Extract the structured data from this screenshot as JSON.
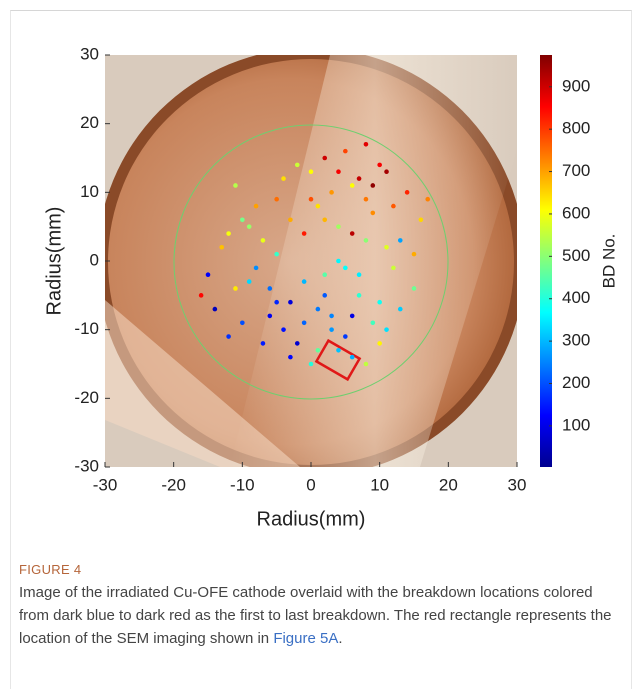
{
  "chart_data": {
    "type": "scatter",
    "x_label": "Radius(mm)",
    "y_label": "Radius(mm)",
    "colorbar_label": "BD No.",
    "xlim": [
      -30,
      30
    ],
    "ylim": [
      -30,
      30
    ],
    "xticks": [
      -30,
      -20,
      -10,
      0,
      10,
      20,
      30
    ],
    "yticks": [
      -30,
      -20,
      -10,
      0,
      10,
      20,
      30
    ],
    "clim": [
      3,
      975
    ],
    "cticks": [
      100,
      200,
      300,
      400,
      500,
      600,
      700,
      800,
      900
    ],
    "colormap": "jet",
    "x": [
      -16,
      -15,
      -12,
      -10,
      -8,
      -7,
      -5,
      -4,
      -3,
      -2,
      -1,
      0,
      1,
      2,
      3,
      4,
      5,
      6,
      7,
      8,
      9,
      10,
      11,
      12,
      13,
      14,
      15,
      16,
      17,
      -14,
      -11,
      -9,
      -6,
      -3,
      0,
      2,
      4,
      6,
      8,
      10,
      12,
      -13,
      -10,
      -7,
      -4,
      -1,
      1,
      3,
      5,
      7,
      9,
      11,
      13,
      15,
      -12,
      -8,
      -5,
      -2,
      0,
      2,
      4,
      6,
      8,
      10,
      -6,
      -3,
      1,
      3,
      5,
      7,
      9,
      11,
      -9,
      -5,
      -1,
      2,
      4,
      6,
      8,
      -11
    ],
    "values": [
      -5,
      -2,
      4,
      -9,
      8,
      -12,
      1,
      12,
      -6,
      14,
      -3,
      9,
      -13,
      15,
      -8,
      5,
      -11,
      11,
      -2,
      17,
      7,
      -6,
      13,
      -1,
      3,
      10,
      -4,
      6,
      9,
      -7,
      11,
      -3,
      -8,
      6,
      -15,
      -5,
      13,
      -14,
      3,
      -12,
      8,
      2,
      6,
      3,
      -10,
      4,
      -7,
      10,
      -1,
      12,
      -9,
      2,
      -7,
      1,
      -11,
      -1,
      9,
      -12,
      13,
      -2,
      -13,
      4,
      -15,
      14,
      -4,
      -14,
      8,
      -10,
      16,
      -5,
      11,
      -10,
      5,
      -6,
      -9,
      6,
      0,
      -8,
      9,
      -4
    ],
    "color_values": [
      850,
      120,
      600,
      200,
      700,
      150,
      420,
      640,
      90,
      560,
      300,
      780,
      460,
      900,
      250,
      520,
      180,
      610,
      350,
      880,
      720,
      380,
      940,
      560,
      280,
      820,
      470,
      650,
      730,
      60,
      540,
      330,
      110,
      690,
      400,
      210,
      860,
      290,
      500,
      620,
      770,
      670,
      480,
      590,
      140,
      830,
      240,
      710,
      370,
      910,
      430,
      580,
      320,
      690,
      170,
      260,
      750,
      80,
      610,
      450,
      310,
      920,
      550,
      860,
      230,
      130,
      640,
      270,
      790,
      410,
      960,
      340,
      510,
      160,
      220,
      680,
      360,
      100,
      740,
      630
    ]
  },
  "caption": {
    "label": "FIGURE 4",
    "text": "Image of the irradiated Cu-OFE cathode overlaid with the breakdown locations colored from dark blue to dark red as the first to last breakdown. The red rectangle represents the location of the SEM imaging shown in",
    "link": "Figure 5A",
    "text_end": "."
  }
}
